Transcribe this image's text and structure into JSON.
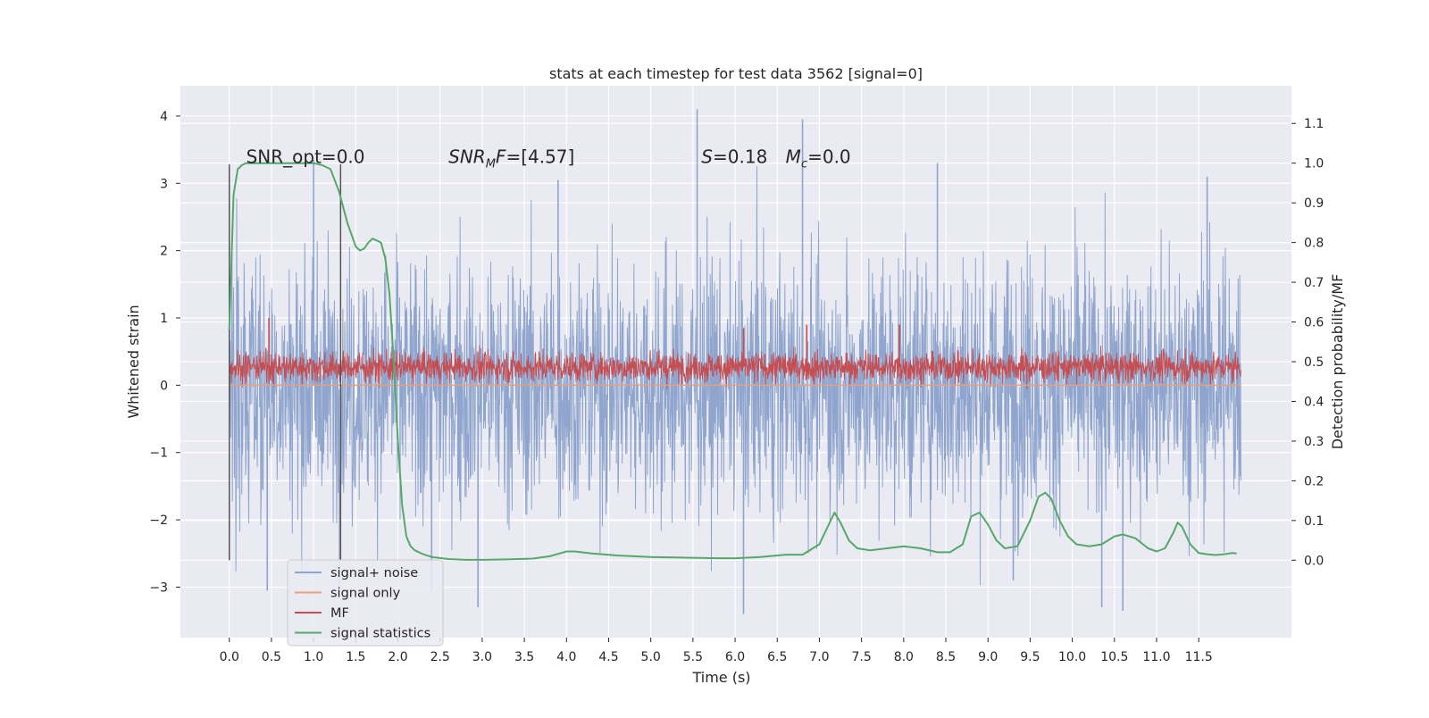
{
  "chart_data": {
    "type": "line",
    "title": "stats at each timestep for test data 3562 [signal=0]",
    "xlabel": "Time (s)",
    "ylabel": "Whitened strain",
    "ylabel_right": "Detection probability/MF",
    "xlim": [
      -0.58,
      12.6
    ],
    "ylim": [
      -3.75,
      4.45
    ],
    "ylim_right": [
      -0.195,
      1.195
    ],
    "x_ticks": [
      "0.0",
      "0.5",
      "1.0",
      "1.5",
      "2.0",
      "2.5",
      "3.0",
      "3.5",
      "4.0",
      "4.5",
      "5.0",
      "5.5",
      "6.0",
      "6.5",
      "7.0",
      "7.5",
      "8.0",
      "8.5",
      "9.0",
      "9.5",
      "10.0",
      "10.5",
      "11.0",
      "11.5"
    ],
    "y_ticks": [
      "4",
      "3",
      "2",
      "1",
      "0",
      "−1",
      "−2",
      "−3"
    ],
    "y_ticks_right": [
      "1.1",
      "1.0",
      "0.9",
      "0.8",
      "0.7",
      "0.6",
      "0.5",
      "0.4",
      "0.3",
      "0.2",
      "0.1",
      "0.0"
    ],
    "grid": true,
    "annotations": [
      {
        "label": "SNR_opt=0.0",
        "x": 0.2,
        "y": 3.3
      },
      {
        "label_main": "SNR",
        "label_sub": "M",
        "label_rest": "F=[4.57]",
        "x": 2.6,
        "y": 3.3
      },
      {
        "label_main": "S",
        "label_rest": "=0.18",
        "x": 5.6,
        "y": 3.3
      },
      {
        "label_main": "M",
        "label_sub": "c",
        "label_rest": "=0.0",
        "x": 6.6,
        "y": 3.3
      }
    ],
    "vlines": [
      {
        "x": 0.0,
        "ymin": -2.6,
        "ymax": 3.28
      },
      {
        "x": 1.32,
        "ymin": -2.6,
        "ymax": 3.28
      }
    ],
    "legend": {
      "placement": "lower-left",
      "entries": [
        "signal+ noise",
        "signal only",
        "MF",
        "signal statistics"
      ]
    },
    "series": [
      {
        "name": "signal+ noise",
        "color": "#8fa5cd",
        "kind": "noise",
        "x_range": [
          0.0,
          12.0
        ],
        "typical_range": [
          -1.6,
          1.6
        ],
        "extremes": [
          {
            "x": 0.45,
            "y": -3.05
          },
          {
            "x": 1.0,
            "y": 3.35
          },
          {
            "x": 2.4,
            "y": -3.05
          },
          {
            "x": 2.95,
            "y": -3.3
          },
          {
            "x": 3.9,
            "y": 3.05
          },
          {
            "x": 5.55,
            "y": 4.1
          },
          {
            "x": 6.1,
            "y": -3.4
          },
          {
            "x": 6.8,
            "y": 3.95
          },
          {
            "x": 8.4,
            "y": 3.3
          },
          {
            "x": 9.3,
            "y": -2.9
          },
          {
            "x": 10.35,
            "y": -3.3
          },
          {
            "x": 10.6,
            "y": -3.35
          },
          {
            "x": 11.6,
            "y": 3.1
          }
        ]
      },
      {
        "name": "signal only",
        "color": "#e8a07c",
        "kind": "flat",
        "values": [
          0.0
        ]
      },
      {
        "name": "MF",
        "color": "#c44e52",
        "kind": "noise",
        "x_range": [
          0.0,
          12.0
        ],
        "typical_range": [
          0.05,
          0.55
        ],
        "extremes": [
          {
            "x": 0.47,
            "y": 1.0
          },
          {
            "x": 6.1,
            "y": 0.85
          },
          {
            "x": 6.85,
            "y": 0.9
          },
          {
            "x": 7.95,
            "y": 0.9
          }
        ]
      },
      {
        "name": "signal statistics",
        "color": "#55a868",
        "axis": "right",
        "x": [
          0.0,
          0.05,
          0.1,
          0.15,
          0.2,
          0.3,
          0.5,
          0.8,
          1.0,
          1.1,
          1.2,
          1.3,
          1.4,
          1.5,
          1.55,
          1.6,
          1.65,
          1.7,
          1.75,
          1.8,
          1.85,
          1.9,
          1.95,
          2.0,
          2.05,
          2.1,
          2.15,
          2.2,
          2.3,
          2.4,
          2.6,
          2.8,
          3.0,
          3.3,
          3.6,
          3.8,
          4.0,
          4.1,
          4.3,
          4.6,
          5.0,
          5.5,
          5.8,
          6.0,
          6.3,
          6.6,
          6.8,
          7.0,
          7.1,
          7.18,
          7.25,
          7.35,
          7.45,
          7.6,
          7.8,
          8.0,
          8.2,
          8.4,
          8.55,
          8.7,
          8.8,
          8.9,
          9.0,
          9.1,
          9.2,
          9.35,
          9.5,
          9.6,
          9.68,
          9.75,
          9.85,
          9.95,
          10.05,
          10.2,
          10.35,
          10.5,
          10.6,
          10.75,
          10.9,
          11.0,
          11.1,
          11.2,
          11.25,
          11.3,
          11.4,
          11.5,
          11.6,
          11.7,
          11.8,
          11.9,
          11.95
        ],
        "values": [
          0.58,
          0.92,
          0.985,
          0.995,
          1.0,
          1.0,
          1.0,
          1.0,
          1.0,
          0.995,
          0.985,
          0.93,
          0.85,
          0.79,
          0.78,
          0.785,
          0.8,
          0.81,
          0.805,
          0.8,
          0.76,
          0.67,
          0.5,
          0.3,
          0.14,
          0.06,
          0.035,
          0.025,
          0.015,
          0.008,
          0.003,
          0.001,
          0.001,
          0.002,
          0.004,
          0.01,
          0.022,
          0.022,
          0.017,
          0.012,
          0.008,
          0.006,
          0.005,
          0.005,
          0.008,
          0.014,
          0.014,
          0.04,
          0.085,
          0.12,
          0.095,
          0.05,
          0.03,
          0.025,
          0.03,
          0.035,
          0.03,
          0.02,
          0.02,
          0.04,
          0.11,
          0.12,
          0.09,
          0.05,
          0.03,
          0.035,
          0.1,
          0.16,
          0.17,
          0.155,
          0.1,
          0.06,
          0.04,
          0.035,
          0.04,
          0.06,
          0.065,
          0.055,
          0.03,
          0.022,
          0.03,
          0.07,
          0.095,
          0.085,
          0.04,
          0.018,
          0.015,
          0.013,
          0.015,
          0.018,
          0.017
        ]
      }
    ]
  }
}
